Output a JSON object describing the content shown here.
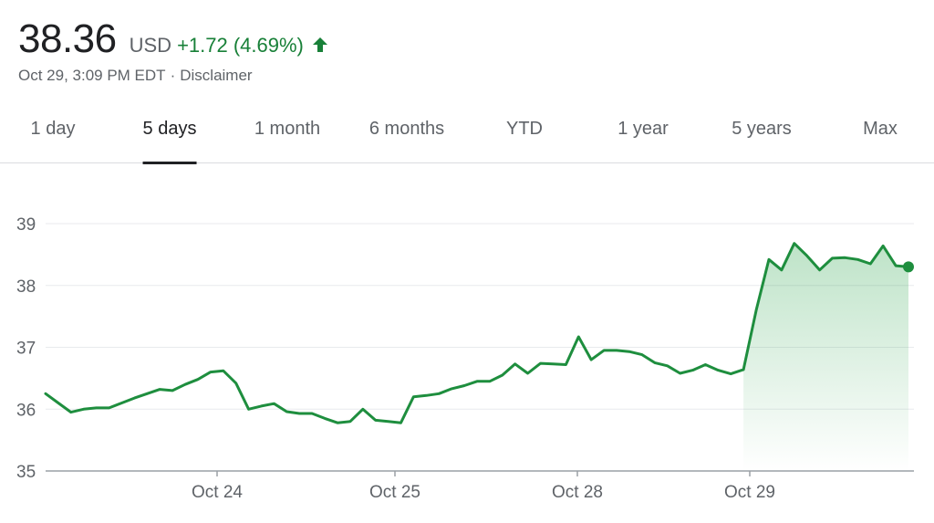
{
  "quote": {
    "price": "38.36",
    "currency": "USD",
    "change": "+1.72 (4.69%)",
    "timestamp": "Oct 29, 3:09 PM EDT",
    "separator": "·",
    "disclaimer": "Disclaimer",
    "up_icon": "arrow-up-icon"
  },
  "tabs": [
    {
      "label": "1 day",
      "active": false
    },
    {
      "label": "5 days",
      "active": true
    },
    {
      "label": "1 month",
      "active": false
    },
    {
      "label": "6 months",
      "active": false
    },
    {
      "label": "YTD",
      "active": false
    },
    {
      "label": "1 year",
      "active": false
    },
    {
      "label": "5 years",
      "active": false
    },
    {
      "label": "Max",
      "active": false
    }
  ],
  "colors": {
    "line": "#1e8e3e",
    "fill": "#34a853",
    "grid": "#e8eaed",
    "text": "#5f6368",
    "active_tab": "#202124"
  },
  "chart_data": {
    "type": "area",
    "title": "",
    "xlabel": "",
    "ylabel": "",
    "ylim": [
      35,
      39
    ],
    "yticks": [
      "35",
      "36",
      "37",
      "38",
      "39"
    ],
    "x_tick_labels": [
      "Oct 24",
      "Oct 25",
      "Oct 28",
      "Oct 29"
    ],
    "grid": true,
    "series": [
      {
        "values": [
          36.25,
          36.1,
          35.95,
          36.0,
          36.02,
          36.02,
          36.1,
          36.18,
          36.25,
          36.32,
          36.3,
          36.4,
          36.48,
          36.6,
          36.62,
          36.42,
          36.0,
          36.05,
          36.09,
          35.96,
          35.93,
          35.93,
          35.85,
          35.78,
          35.8,
          36.0,
          35.82,
          35.8,
          35.78,
          36.2,
          36.22,
          36.25,
          36.33,
          36.38,
          36.45,
          36.45,
          36.55,
          36.73,
          36.58,
          36.74,
          36.73,
          36.72,
          37.17,
          36.8,
          36.95,
          36.95,
          36.93,
          36.88,
          36.75,
          36.7,
          36.58,
          36.63,
          36.72,
          36.63,
          36.57,
          36.64,
          37.6,
          38.42,
          38.25,
          38.68,
          38.48,
          38.25,
          38.44,
          38.45,
          38.42,
          38.35,
          38.64,
          38.32,
          38.3
        ]
      }
    ]
  }
}
